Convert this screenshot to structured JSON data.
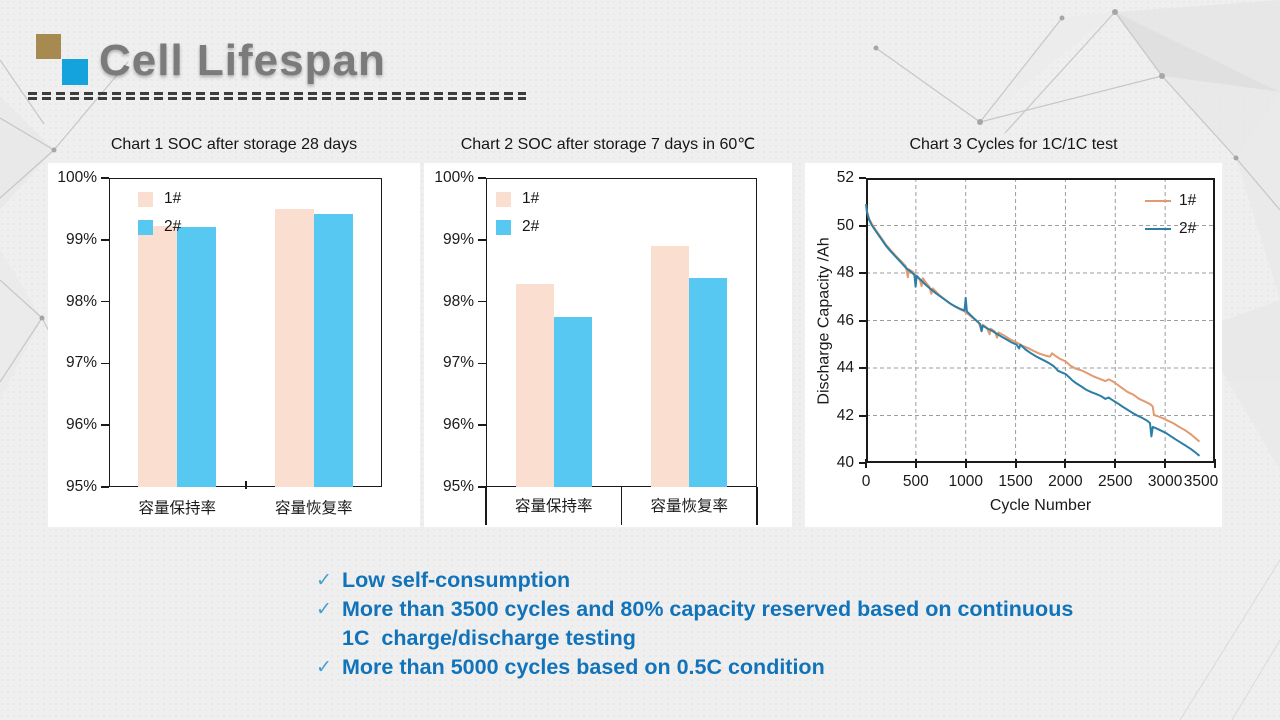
{
  "header": {
    "title": "Cell Lifespan"
  },
  "check_glyph": "✓",
  "bullets": [
    "Low self-consumption",
    "More than 3500 cycles and 80% capacity reserved based on continuous 1C  charge/discharge testing",
    "More than 5000 cycles based on 0.5C condition"
  ],
  "colors": {
    "bullet_text": "#1173BA",
    "bullet_check": "#44A0CC",
    "logo_tan": "#A78A50",
    "logo_blue": "#14A3DC",
    "bar_series1": "#FADFD0",
    "bar_series2": "#57C8F2",
    "line_series1": "#E29A70",
    "line_series2": "#2B7EA5",
    "grid": "#9e9e9e",
    "axis": "#1a1a1a"
  },
  "chart_data": [
    {
      "type": "bar",
      "title": "Chart 1 SOC after storage 28 days",
      "categories": [
        "容量保持率",
        "容量恢复率"
      ],
      "series": [
        {
          "name": "1#",
          "color": "#FADFD0",
          "values": [
            99.22,
            99.5
          ]
        },
        {
          "name": "2#",
          "color": "#57C8F2",
          "values": [
            99.2,
            99.42
          ]
        }
      ],
      "ylim": [
        95,
        100
      ],
      "y_ticks": [
        "100%",
        "99%",
        "98%",
        "97%",
        "96%",
        "95%"
      ],
      "legend_position": "top-left",
      "grid": "off"
    },
    {
      "type": "bar",
      "title": "Chart 2 SOC after storage 7 days in 60℃",
      "categories": [
        "容量保持率",
        "容量恢复率"
      ],
      "series": [
        {
          "name": "1#",
          "color": "#FADFD0",
          "values": [
            98.28,
            98.9
          ]
        },
        {
          "name": "2#",
          "color": "#57C8F2",
          "values": [
            97.75,
            98.38
          ]
        }
      ],
      "ylim": [
        95,
        100
      ],
      "y_ticks": [
        "100%",
        "99%",
        "98%",
        "97%",
        "96%",
        "95%"
      ],
      "legend_position": "top-left",
      "boxed_category_labels": true,
      "grid": "off"
    },
    {
      "type": "line",
      "title": "Chart 3 Cycles for 1C/1C test",
      "xlabel": "Cycle Number",
      "ylabel": "Discharge Capacity /Ah",
      "xlim": [
        0,
        3500
      ],
      "ylim": [
        40,
        52
      ],
      "x_ticks": [
        0,
        500,
        1000,
        1500,
        2000,
        2500,
        3000,
        3500
      ],
      "y_ticks": [
        40,
        42,
        44,
        46,
        48,
        50,
        52
      ],
      "grid": "dashed",
      "legend_position": "top-right",
      "series": [
        {
          "name": "1#",
          "color": "#E29A70",
          "points": [
            [
              0,
              50.9
            ],
            [
              10,
              50.6
            ],
            [
              30,
              50.3
            ],
            [
              60,
              50.05
            ],
            [
              100,
              49.8
            ],
            [
              150,
              49.5
            ],
            [
              200,
              49.2
            ],
            [
              250,
              48.95
            ],
            [
              300,
              48.72
            ],
            [
              350,
              48.5
            ],
            [
              400,
              48.28
            ],
            [
              412,
              48.0
            ],
            [
              420,
              47.82
            ],
            [
              428,
              48.15
            ],
            [
              470,
              48.05
            ],
            [
              500,
              47.88
            ],
            [
              540,
              47.72
            ],
            [
              558,
              47.45
            ],
            [
              570,
              47.78
            ],
            [
              600,
              47.6
            ],
            [
              635,
              47.42
            ],
            [
              655,
              47.12
            ],
            [
              668,
              47.35
            ],
            [
              700,
              47.22
            ],
            [
              740,
              47.05
            ],
            [
              780,
              46.92
            ],
            [
              830,
              46.75
            ],
            [
              880,
              46.62
            ],
            [
              930,
              46.5
            ],
            [
              980,
              46.4
            ],
            [
              1030,
              46.25
            ],
            [
              1080,
              46.08
            ],
            [
              1130,
              45.92
            ],
            [
              1160,
              45.55
            ],
            [
              1172,
              45.82
            ],
            [
              1210,
              45.7
            ],
            [
              1240,
              45.42
            ],
            [
              1252,
              45.65
            ],
            [
              1290,
              45.55
            ],
            [
              1315,
              45.28
            ],
            [
              1328,
              45.5
            ],
            [
              1380,
              45.38
            ],
            [
              1440,
              45.22
            ],
            [
              1500,
              45.1
            ],
            [
              1560,
              44.95
            ],
            [
              1620,
              44.85
            ],
            [
              1680,
              44.72
            ],
            [
              1740,
              44.6
            ],
            [
              1800,
              44.52
            ],
            [
              1845,
              44.48
            ],
            [
              1865,
              44.62
            ],
            [
              1895,
              44.52
            ],
            [
              1940,
              44.4
            ],
            [
              2000,
              44.28
            ],
            [
              2050,
              44.1
            ],
            [
              2100,
              43.98
            ],
            [
              2160,
              43.9
            ],
            [
              2220,
              43.78
            ],
            [
              2280,
              43.65
            ],
            [
              2340,
              43.55
            ],
            [
              2400,
              43.45
            ],
            [
              2435,
              43.52
            ],
            [
              2470,
              43.45
            ],
            [
              2520,
              43.3
            ],
            [
              2570,
              43.15
            ],
            [
              2620,
              43.0
            ],
            [
              2680,
              42.88
            ],
            [
              2740,
              42.7
            ],
            [
              2800,
              42.58
            ],
            [
              2850,
              42.48
            ],
            [
              2875,
              42.38
            ],
            [
              2888,
              42.02
            ],
            [
              2920,
              41.98
            ],
            [
              2970,
              41.9
            ],
            [
              3020,
              41.8
            ],
            [
              3080,
              41.68
            ],
            [
              3140,
              41.52
            ],
            [
              3200,
              41.38
            ],
            [
              3260,
              41.2
            ],
            [
              3310,
              41.02
            ],
            [
              3345,
              40.9
            ]
          ]
        },
        {
          "name": "2#",
          "color": "#2B7EA5",
          "points": [
            [
              0,
              50.9
            ],
            [
              10,
              50.55
            ],
            [
              30,
              50.25
            ],
            [
              60,
              50.0
            ],
            [
              100,
              49.75
            ],
            [
              150,
              49.45
            ],
            [
              200,
              49.15
            ],
            [
              250,
              48.9
            ],
            [
              300,
              48.68
            ],
            [
              350,
              48.45
            ],
            [
              400,
              48.22
            ],
            [
              450,
              48.05
            ],
            [
              485,
              47.92
            ],
            [
              497,
              47.42
            ],
            [
              508,
              47.88
            ],
            [
              550,
              47.7
            ],
            [
              600,
              47.5
            ],
            [
              650,
              47.32
            ],
            [
              700,
              47.15
            ],
            [
              750,
              47.0
            ],
            [
              800,
              46.85
            ],
            [
              850,
              46.7
            ],
            [
              900,
              46.58
            ],
            [
              950,
              46.48
            ],
            [
              988,
              46.42
            ],
            [
              1000,
              46.95
            ],
            [
              1012,
              46.38
            ],
            [
              1060,
              46.18
            ],
            [
              1105,
              46.0
            ],
            [
              1145,
              45.85
            ],
            [
              1158,
              45.55
            ],
            [
              1170,
              45.78
            ],
            [
              1210,
              45.68
            ],
            [
              1260,
              45.58
            ],
            [
              1310,
              45.45
            ],
            [
              1360,
              45.32
            ],
            [
              1410,
              45.2
            ],
            [
              1460,
              45.08
            ],
            [
              1510,
              44.98
            ],
            [
              1535,
              44.82
            ],
            [
              1548,
              44.98
            ],
            [
              1600,
              44.78
            ],
            [
              1655,
              44.62
            ],
            [
              1710,
              44.48
            ],
            [
              1770,
              44.35
            ],
            [
              1830,
              44.22
            ],
            [
              1875,
              44.1
            ],
            [
              1905,
              43.98
            ],
            [
              1925,
              43.88
            ],
            [
              1960,
              43.82
            ],
            [
              2000,
              43.75
            ],
            [
              2035,
              43.62
            ],
            [
              2070,
              43.48
            ],
            [
              2110,
              43.35
            ],
            [
              2160,
              43.22
            ],
            [
              2210,
              43.08
            ],
            [
              2260,
              42.98
            ],
            [
              2310,
              42.9
            ],
            [
              2355,
              42.82
            ],
            [
              2400,
              42.7
            ],
            [
              2432,
              42.76
            ],
            [
              2475,
              42.64
            ],
            [
              2520,
              42.52
            ],
            [
              2570,
              42.38
            ],
            [
              2620,
              42.25
            ],
            [
              2670,
              42.12
            ],
            [
              2720,
              42.0
            ],
            [
              2770,
              41.9
            ],
            [
              2820,
              41.78
            ],
            [
              2848,
              41.68
            ],
            [
              2862,
              41.12
            ],
            [
              2876,
              41.52
            ],
            [
              2910,
              41.46
            ],
            [
              2960,
              41.36
            ],
            [
              3010,
              41.26
            ],
            [
              3060,
              41.12
            ],
            [
              3110,
              40.98
            ],
            [
              3160,
              40.85
            ],
            [
              3210,
              40.72
            ],
            [
              3260,
              40.58
            ],
            [
              3310,
              40.42
            ],
            [
              3345,
              40.3
            ]
          ]
        }
      ]
    }
  ]
}
